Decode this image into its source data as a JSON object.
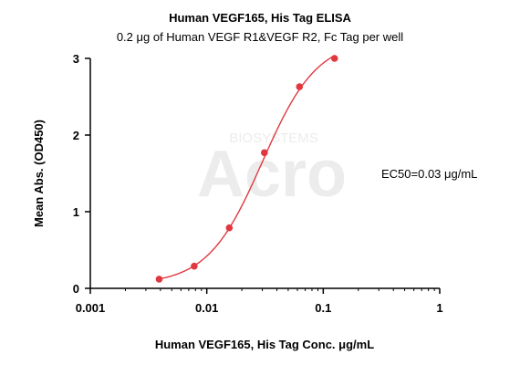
{
  "chart_data": {
    "type": "scatter",
    "title": "Human VEGF165, His Tag ELISA",
    "subtitle": "0.2 μg of Human VEGF R1&VEGF R2, Fc Tag per well",
    "xlabel": "Human VEGF165, His Tag Conc.  μg/mL",
    "ylabel": "Mean Abs. (OD450)",
    "xscale": "log",
    "xlim": [
      0.001,
      1
    ],
    "ylim": [
      0,
      3
    ],
    "x_ticks": [
      0.001,
      0.01,
      0.1,
      1
    ],
    "x_tick_labels": [
      "0.001",
      "0.01",
      "0.1",
      "1"
    ],
    "y_ticks": [
      0,
      1,
      2,
      3
    ],
    "y_tick_labels": [
      "0",
      "1",
      "2",
      "3"
    ],
    "grid": false,
    "series": [
      {
        "x": [
          0.0039,
          0.0078,
          0.0156,
          0.03125,
          0.0625,
          0.125
        ],
        "y": [
          0.12,
          0.29,
          0.79,
          1.77,
          2.63,
          3.0
        ],
        "color": "#e0383e",
        "fit": "4PL"
      }
    ],
    "annotations": [
      {
        "text": "EC50=0.03 μg/mL"
      }
    ],
    "watermark": {
      "brand": "Acro",
      "small_text": "BIOSYSTEMS"
    }
  }
}
